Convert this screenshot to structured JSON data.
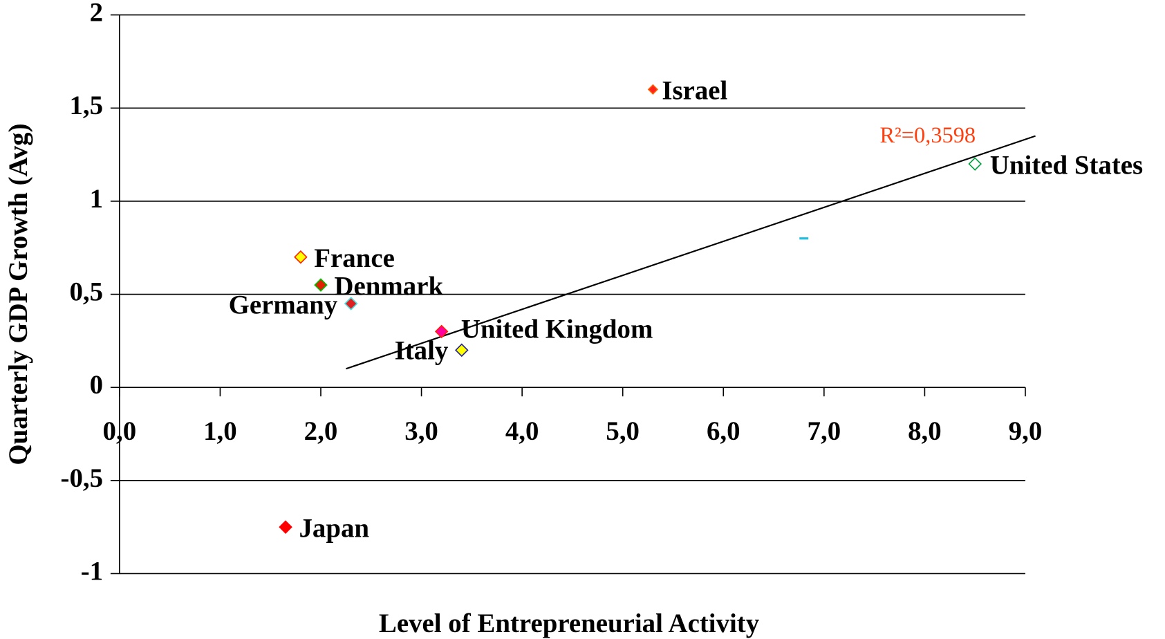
{
  "chart_data": {
    "type": "scatter",
    "x_label": "Level of Entrepreneurial Activity",
    "y_label": "Quarterly GDP Growth (Avg)",
    "xlim": [
      0,
      9
    ],
    "ylim": [
      -1,
      2
    ],
    "xticks": [
      {
        "value": 0,
        "label": "0,0"
      },
      {
        "value": 1,
        "label": "1,0"
      },
      {
        "value": 2,
        "label": "2,0"
      },
      {
        "value": 3,
        "label": "3,0"
      },
      {
        "value": 4,
        "label": "4,0"
      },
      {
        "value": 5,
        "label": "5,0"
      },
      {
        "value": 6,
        "label": "6,0"
      },
      {
        "value": 7,
        "label": "7,0"
      },
      {
        "value": 8,
        "label": "8,0"
      },
      {
        "value": 9,
        "label": "9,0"
      }
    ],
    "yticks": [
      -1,
      {
        "value": -0.5,
        "label": "-0,5"
      },
      0,
      {
        "value": 0.5,
        "label": "0,5"
      },
      1,
      {
        "value": 1.5,
        "label": "1,5"
      },
      2
    ],
    "grid": true,
    "series": [
      {
        "name": "Israel",
        "x": [
          5.3
        ],
        "values": [
          1.6
        ],
        "color": "#ff2020",
        "edge": "#ff6000",
        "size": 6
      },
      {
        "name": "United States",
        "x": [
          8.5
        ],
        "values": [
          1.2
        ],
        "color": "#ffffff",
        "edge": "#00a040",
        "size": 8
      },
      {
        "name": "France",
        "x": [
          1.8
        ],
        "values": [
          0.7
        ],
        "color": "#ffff00",
        "edge": "#ff2000",
        "size": 8
      },
      {
        "name": "Denmark",
        "x": [
          2.0
        ],
        "values": [
          0.55
        ],
        "color": "#e02000",
        "edge": "#00c000",
        "size": 8
      },
      {
        "name": "Germany",
        "x": [
          2.3
        ],
        "values": [
          0.45
        ],
        "color": "#e02020",
        "edge": "#40e0e0",
        "size": 8
      },
      {
        "name": "United Kingdom",
        "x": [
          3.2
        ],
        "values": [
          0.3
        ],
        "color": "#ff00a0",
        "edge": "#ff2000",
        "size": 8
      },
      {
        "name": "Italy",
        "x": [
          3.4
        ],
        "values": [
          0.2
        ],
        "color": "#ffff00",
        "edge": "#2020a0",
        "size": 8
      },
      {
        "name": "Japan",
        "x": [
          1.65
        ],
        "values": [
          -0.75
        ],
        "color": "#ff0000",
        "edge": "#ff0000",
        "size": 8
      },
      {
        "name": null,
        "x": [
          6.8
        ],
        "values": [
          0.8
        ],
        "color": "#20c0e0",
        "edge": "#20c0e0",
        "size": 0
      }
    ],
    "trendline": {
      "x": [
        2.25,
        9.1
      ],
      "values": [
        0.1,
        1.35
      ],
      "label": "R²=0,3598",
      "color": "#ff4010"
    }
  }
}
